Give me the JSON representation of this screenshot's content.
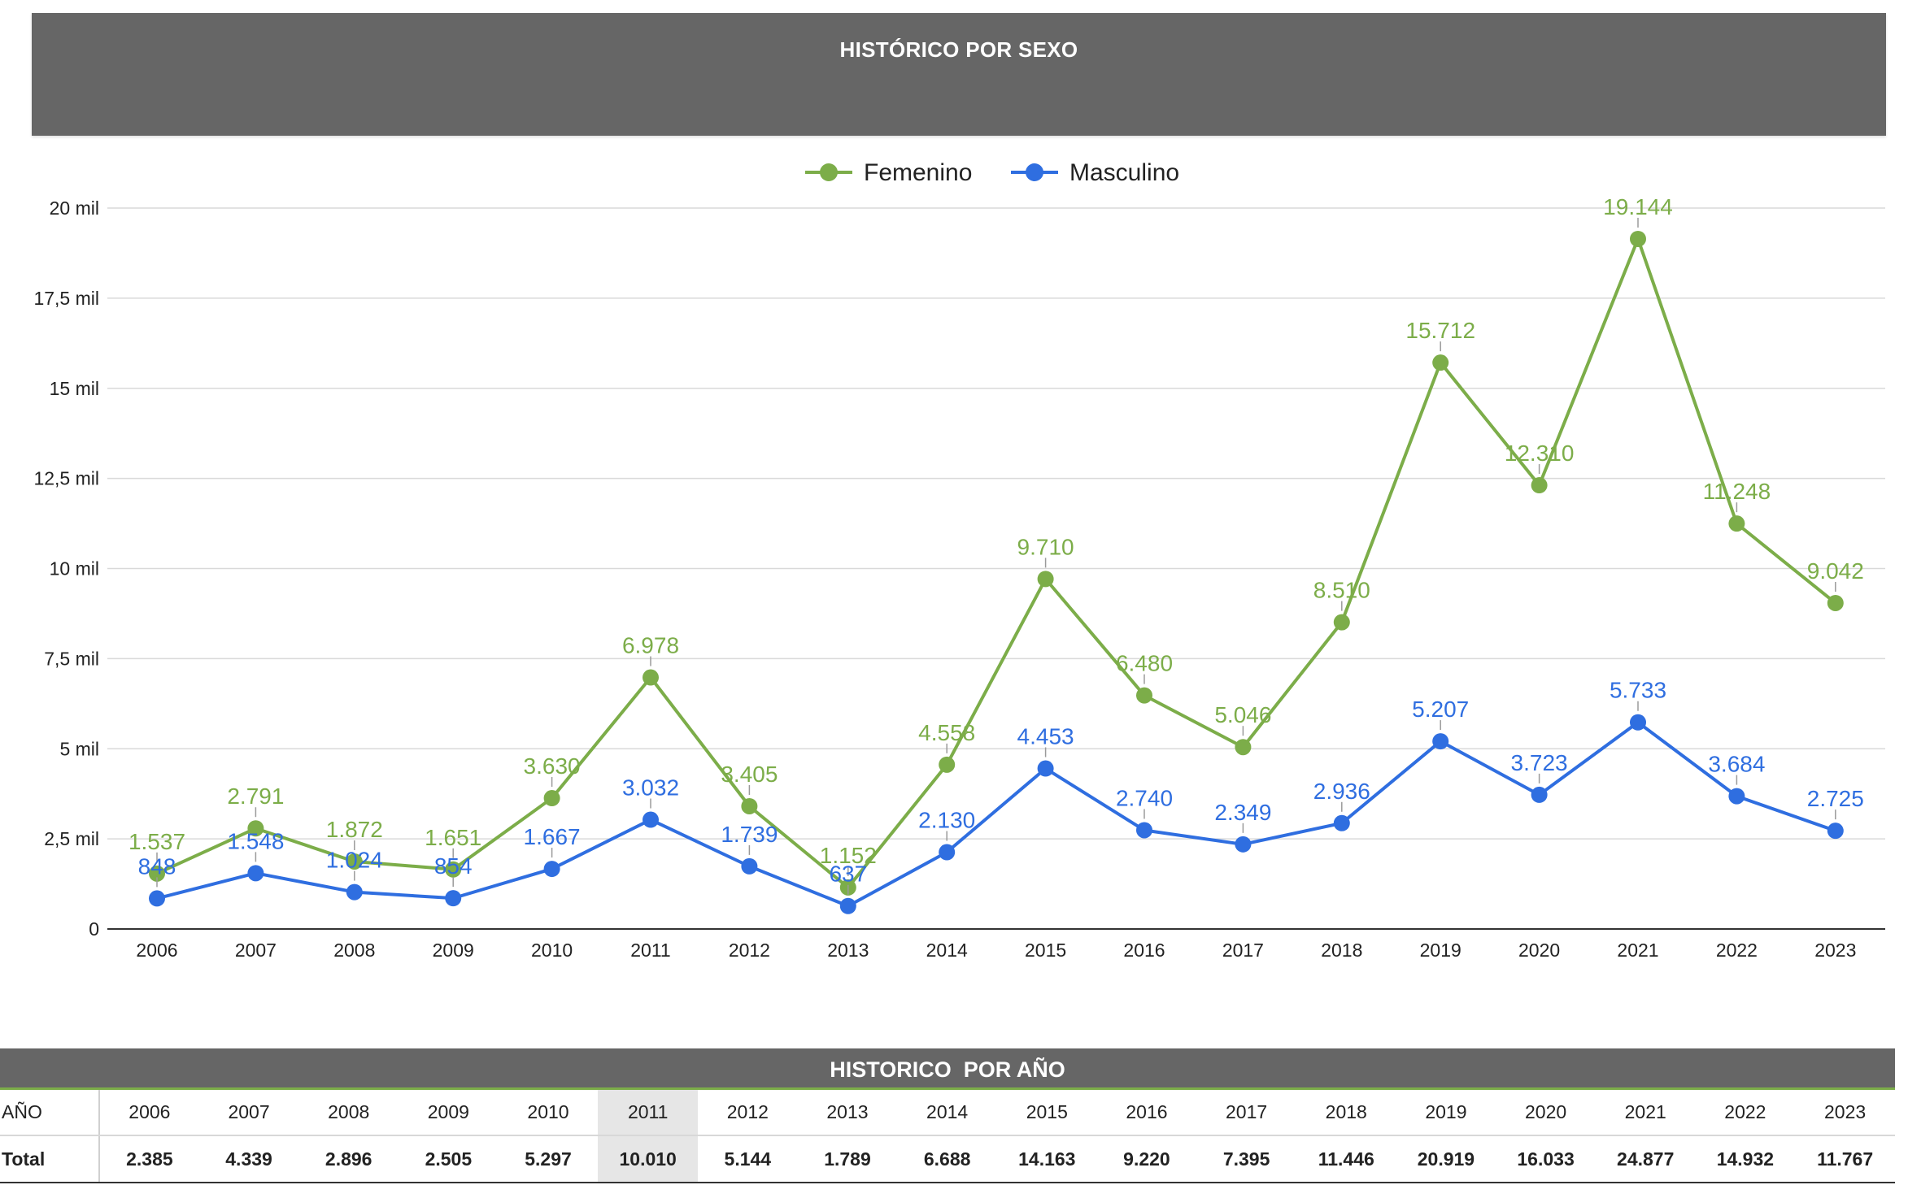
{
  "header": {
    "title": "HISTÓRICO POR SEXO"
  },
  "colors": {
    "femenino": "#7cad49",
    "masculino": "#2f6ee0",
    "banner": "#666666"
  },
  "chart_data": {
    "type": "line",
    "title": "HISTÓRICO POR SEXO",
    "categories": [
      "2006",
      "2007",
      "2008",
      "2009",
      "2010",
      "2011",
      "2012",
      "2013",
      "2014",
      "2015",
      "2016",
      "2017",
      "2018",
      "2019",
      "2020",
      "2021",
      "2022",
      "2023"
    ],
    "series": [
      {
        "name": "Femenino",
        "values": [
          1537,
          2791,
          1872,
          1651,
          3630,
          6978,
          3405,
          1152,
          4558,
          9710,
          6480,
          5046,
          8510,
          15712,
          12310,
          19144,
          11248,
          9042
        ],
        "labels": [
          "1.537",
          "2.791",
          "1.872",
          "1.651",
          "3.630",
          "6.978",
          "3.405",
          "1.152",
          "4.558",
          "9.710",
          "6.480",
          "5.046",
          "8.510",
          "15.712",
          "12.310",
          "19.144",
          "11.248",
          "9.042"
        ]
      },
      {
        "name": "Masculino",
        "values": [
          848,
          1548,
          1024,
          854,
          1667,
          3032,
          1739,
          637,
          2130,
          4453,
          2740,
          2349,
          2936,
          5207,
          3723,
          5733,
          3684,
          2725
        ],
        "labels": [
          "848",
          "1.548",
          "1.024",
          "854",
          "1.667",
          "3.032",
          "1.739",
          "637",
          "2.130",
          "4.453",
          "2.740",
          "2.349",
          "2.936",
          "5.207",
          "3.723",
          "5.733",
          "3.684",
          "2.725"
        ]
      }
    ],
    "ylim": [
      0,
      20000
    ],
    "yticks": [
      0,
      2500,
      5000,
      7500,
      10000,
      12500,
      15000,
      17500,
      20000
    ],
    "ytick_labels": [
      "0",
      "2,5 mil",
      "5 mil",
      "7,5 mil",
      "10 mil",
      "12,5 mil",
      "15 mil",
      "17,5 mil",
      "20 mil"
    ],
    "grid": true,
    "legend": "top-center"
  },
  "table": {
    "title": "HISTORICO  POR AÑO",
    "row_header_label": "AÑO",
    "total_label": "Total",
    "highlight_year": "2011",
    "years": [
      "2006",
      "2007",
      "2008",
      "2009",
      "2010",
      "2011",
      "2012",
      "2013",
      "2014",
      "2015",
      "2016",
      "2017",
      "2018",
      "2019",
      "2020",
      "2021",
      "2022",
      "2023"
    ],
    "totals": [
      "2.385",
      "4.339",
      "2.896",
      "2.505",
      "5.297",
      "10.010",
      "5.144",
      "1.789",
      "6.688",
      "14.163",
      "9.220",
      "7.395",
      "11.446",
      "20.919",
      "16.033",
      "24.877",
      "14.932",
      "11.767"
    ]
  }
}
